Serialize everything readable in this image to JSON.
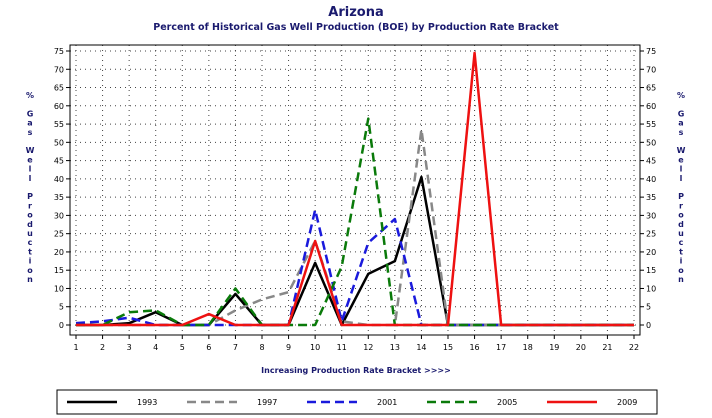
{
  "chart_data": {
    "type": "line",
    "title": "Arizona",
    "subtitle": "Percent of Historical Gas Well Production (BOE) by Production Rate Bracket",
    "xlabel": "Increasing Production Rate Bracket >>>>",
    "ylabel": "% Gas Well Production",
    "ylabel_chars": [
      "%",
      "",
      "G",
      "a",
      "s",
      "",
      "W",
      "e",
      "l",
      "l",
      "",
      "P",
      "r",
      "o",
      "d",
      "u",
      "c",
      "t",
      "i",
      "o",
      "n"
    ],
    "x": [
      1,
      2,
      3,
      4,
      5,
      6,
      7,
      8,
      9,
      10,
      11,
      12,
      13,
      14,
      15,
      16,
      17,
      18,
      19,
      20,
      21,
      22
    ],
    "xlim": [
      1,
      22
    ],
    "ylim": [
      0,
      75
    ],
    "yticks": [
      0,
      5,
      10,
      15,
      20,
      25,
      30,
      35,
      40,
      45,
      50,
      55,
      60,
      65,
      70,
      75
    ],
    "grid": true,
    "legend_position": "bottom",
    "series": [
      {
        "name": "1993",
        "color": "#000000",
        "dash": "solid",
        "values": [
          0,
          0,
          0.5,
          3.5,
          0,
          0,
          8.5,
          0,
          0,
          17,
          0,
          14,
          17.5,
          40.5,
          0,
          0,
          0,
          0,
          0,
          0,
          0,
          0
        ]
      },
      {
        "name": "1997",
        "color": "#888888",
        "dash": "dash",
        "values": [
          0,
          0,
          0,
          0,
          0,
          0,
          4,
          7,
          9,
          23,
          1,
          0,
          0,
          53.5,
          0,
          0,
          0,
          0,
          0,
          0,
          0,
          0
        ]
      },
      {
        "name": "2001",
        "color": "#1a1adc",
        "dash": "dash",
        "values": [
          0.5,
          1,
          2,
          0,
          0,
          0,
          0,
          0,
          0,
          31.5,
          1,
          22.5,
          29,
          0,
          0,
          0,
          0,
          0,
          0,
          0,
          0,
          0
        ]
      },
      {
        "name": "2005",
        "color": "#0a7a0a",
        "dash": "dash",
        "values": [
          0,
          0,
          3.5,
          4,
          0,
          0,
          10,
          0,
          0,
          0,
          16,
          56.5,
          0,
          0,
          0,
          0,
          0,
          0,
          0,
          0,
          0,
          0
        ]
      },
      {
        "name": "2009",
        "color": "#ee1111",
        "dash": "solid",
        "values": [
          0,
          0,
          0,
          0,
          0,
          3,
          0,
          0,
          0,
          23,
          0,
          0,
          0,
          0,
          0,
          74.5,
          0,
          0,
          0,
          0,
          0,
          0
        ]
      }
    ]
  }
}
